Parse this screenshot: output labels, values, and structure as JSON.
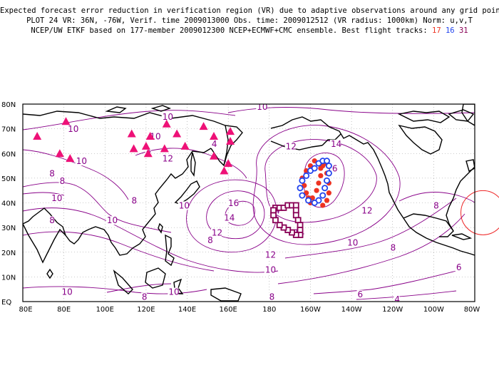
{
  "header": {
    "line1": "Expected forecast error reduction in verification region (VR) due to adaptive observations around any grid point.",
    "line2": "PLOT 24 VR: 36N, -76W, Verif. time 2009013000 Obs. time: 2009012512 (VR radius: 1000km) Norm: u,v,T",
    "line3_prefix": "NCEP/UW ETKF based on 177-member 2009012300 NCEP+ECMWF+CMC ensemble. Best flight tracks:",
    "track_17": "17",
    "track_16": "16",
    "track_31": "31"
  },
  "colors": {
    "track_17": "#ee3322",
    "track_16": "#2244ee",
    "track_31": "#880055",
    "contour": "#880088",
    "triangle": "#ee1177",
    "vr_circle": "#ee2222"
  },
  "axes": {
    "lat_labels": [
      "80N",
      "70N",
      "60N",
      "50N",
      "40N",
      "30N",
      "20N",
      "10N",
      "EQ"
    ],
    "lon_labels": [
      "80E",
      "80E",
      "100E",
      "120E",
      "140E",
      "160E",
      "180",
      "160W",
      "140W",
      "120W",
      "100W",
      "80W"
    ]
  },
  "contour_labels": [
    {
      "text": "10",
      "lon": 130,
      "lat": 74
    },
    {
      "text": "10",
      "lon": 84,
      "lat": 69
    },
    {
      "text": "10",
      "lon": 88,
      "lat": 56
    },
    {
      "text": "8",
      "lon": 75,
      "lat": 51
    },
    {
      "text": "8",
      "lon": 80,
      "lat": 48
    },
    {
      "text": "10",
      "lon": 76,
      "lat": 41
    },
    {
      "text": "8",
      "lon": 115,
      "lat": 40
    },
    {
      "text": "8",
      "lon": 75,
      "lat": 32
    },
    {
      "text": "10",
      "lon": 103,
      "lat": 32
    },
    {
      "text": "10",
      "lon": 124,
      "lat": 66
    },
    {
      "text": "12",
      "lon": 130,
      "lat": 57
    },
    {
      "text": "8",
      "lon": 122,
      "lat": 59
    },
    {
      "text": "4",
      "lon": 154,
      "lat": 63
    },
    {
      "text": "10",
      "lon": 138,
      "lat": 38
    },
    {
      "text": "12",
      "lon": 154,
      "lat": 27
    },
    {
      "text": "16",
      "lon": 162,
      "lat": 39
    },
    {
      "text": "14",
      "lon": 160,
      "lat": 33
    },
    {
      "text": "14",
      "lon": 182,
      "lat": 36
    },
    {
      "text": "12",
      "lon": 190,
      "lat": 62
    },
    {
      "text": "14",
      "lon": 212,
      "lat": 63
    },
    {
      "text": "16",
      "lon": 210,
      "lat": 53
    },
    {
      "text": "12",
      "lon": 227,
      "lat": 36
    },
    {
      "text": "14",
      "lon": 194,
      "lat": 27
    },
    {
      "text": "12",
      "lon": 180,
      "lat": 18
    },
    {
      "text": "10",
      "lon": 180,
      "lat": 12
    },
    {
      "text": "10",
      "lon": 220,
      "lat": 23
    },
    {
      "text": "8",
      "lon": 241,
      "lat": 21
    },
    {
      "text": "8",
      "lon": 152,
      "lat": 24
    },
    {
      "text": "10",
      "lon": 176,
      "lat": 78
    },
    {
      "text": "8",
      "lon": 262,
      "lat": 38
    },
    {
      "text": "6",
      "lon": 273,
      "lat": 13
    },
    {
      "text": "6",
      "lon": 225,
      "lat": 2
    },
    {
      "text": "8",
      "lon": 182,
      "lat": 1
    },
    {
      "text": "10",
      "lon": 133,
      "lat": 3
    },
    {
      "text": "8",
      "lon": 120,
      "lat": 1
    },
    {
      "text": "10",
      "lon": 81,
      "lat": 3
    },
    {
      "text": "4",
      "lon": 243,
      "lat": 0
    }
  ],
  "observation_sites": [
    {
      "lon": 67,
      "lat": 67
    },
    {
      "lon": 81,
      "lat": 73
    },
    {
      "lon": 78,
      "lat": 60
    },
    {
      "lon": 83,
      "lat": 58
    },
    {
      "lon": 113,
      "lat": 68
    },
    {
      "lon": 122,
      "lat": 67
    },
    {
      "lon": 130,
      "lat": 72
    },
    {
      "lon": 135,
      "lat": 68
    },
    {
      "lon": 148,
      "lat": 71
    },
    {
      "lon": 153,
      "lat": 67
    },
    {
      "lon": 161,
      "lat": 69
    },
    {
      "lon": 161,
      "lat": 65
    },
    {
      "lon": 114,
      "lat": 62
    },
    {
      "lon": 120,
      "lat": 63
    },
    {
      "lon": 121,
      "lat": 60
    },
    {
      "lon": 129,
      "lat": 62
    },
    {
      "lon": 139,
      "lat": 63
    },
    {
      "lon": 153,
      "lat": 59
    },
    {
      "lon": 160,
      "lat": 56
    },
    {
      "lon": 158,
      "lat": 53
    }
  ],
  "flight_tracks": {
    "track_17": [
      {
        "lon": 205,
        "lat": 54
      },
      {
        "lon": 206,
        "lat": 55
      },
      {
        "lon": 207,
        "lat": 56
      },
      {
        "lon": 205,
        "lat": 51
      },
      {
        "lon": 204,
        "lat": 48
      },
      {
        "lon": 203,
        "lat": 45
      },
      {
        "lon": 201,
        "lat": 42
      },
      {
        "lon": 200,
        "lat": 40
      },
      {
        "lon": 199,
        "lat": 42
      },
      {
        "lon": 198,
        "lat": 44
      },
      {
        "lon": 197,
        "lat": 47
      },
      {
        "lon": 196,
        "lat": 50
      },
      {
        "lon": 198,
        "lat": 53
      },
      {
        "lon": 200,
        "lat": 55
      },
      {
        "lon": 202,
        "lat": 57
      },
      {
        "lon": 208,
        "lat": 52
      },
      {
        "lon": 209,
        "lat": 48
      },
      {
        "lon": 209,
        "lat": 44
      },
      {
        "lon": 208,
        "lat": 41
      },
      {
        "lon": 206,
        "lat": 39
      }
    ],
    "track_16": [
      {
        "lon": 195,
        "lat": 46
      },
      {
        "lon": 196,
        "lat": 49
      },
      {
        "lon": 198,
        "lat": 51
      },
      {
        "lon": 200,
        "lat": 53
      },
      {
        "lon": 202,
        "lat": 54
      },
      {
        "lon": 204,
        "lat": 56
      },
      {
        "lon": 206,
        "lat": 57
      },
      {
        "lon": 208,
        "lat": 57
      },
      {
        "lon": 209,
        "lat": 55
      },
      {
        "lon": 209,
        "lat": 52
      },
      {
        "lon": 208,
        "lat": 49
      },
      {
        "lon": 207,
        "lat": 46
      },
      {
        "lon": 206,
        "lat": 43
      },
      {
        "lon": 204,
        "lat": 41
      },
      {
        "lon": 202,
        "lat": 40
      },
      {
        "lon": 199,
        "lat": 41
      },
      {
        "lon": 196,
        "lat": 43
      }
    ],
    "track_31": [
      {
        "lon": 183,
        "lat": 38
      },
      {
        "lon": 185,
        "lat": 38
      },
      {
        "lon": 187,
        "lat": 38
      },
      {
        "lon": 189,
        "lat": 39
      },
      {
        "lon": 191,
        "lat": 39
      },
      {
        "lon": 193,
        "lat": 39
      },
      {
        "lon": 193,
        "lat": 37
      },
      {
        "lon": 193,
        "lat": 35
      },
      {
        "lon": 194,
        "lat": 33
      },
      {
        "lon": 195,
        "lat": 31
      },
      {
        "lon": 195,
        "lat": 29
      },
      {
        "lon": 195,
        "lat": 27
      },
      {
        "lon": 193,
        "lat": 27
      },
      {
        "lon": 191,
        "lat": 28
      },
      {
        "lon": 189,
        "lat": 29
      },
      {
        "lon": 187,
        "lat": 30
      },
      {
        "lon": 185,
        "lat": 31
      },
      {
        "lon": 183,
        "lat": 33
      },
      {
        "lon": 182,
        "lat": 35
      },
      {
        "lon": 182,
        "lat": 37
      }
    ]
  },
  "verification_region": {
    "lon": 284,
    "lat": 36
  }
}
